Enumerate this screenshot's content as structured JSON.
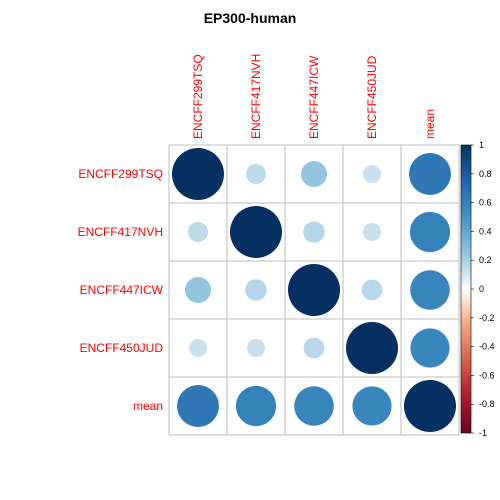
{
  "chart_data": {
    "type": "heatmap",
    "style": "corrplot-circle",
    "title": "EP300-human",
    "rows": [
      "ENCFF299TSQ",
      "ENCFF417NVH",
      "ENCFF447ICW",
      "ENCFF450JUD",
      "mean"
    ],
    "columns": [
      "ENCFF299TSQ",
      "ENCFF417NVH",
      "ENCFF447ICW",
      "ENCFF450JUD",
      "mean"
    ],
    "matrix": [
      [
        1.0,
        0.15,
        0.25,
        0.12,
        0.65
      ],
      [
        0.15,
        1.0,
        0.17,
        0.12,
        0.6
      ],
      [
        0.25,
        0.17,
        1.0,
        0.16,
        0.58
      ],
      [
        0.12,
        0.12,
        0.16,
        1.0,
        0.57
      ],
      [
        0.65,
        0.6,
        0.58,
        0.57,
        1.0
      ]
    ],
    "color_scale": {
      "range": [
        -1,
        1
      ],
      "ticks": [
        "1",
        "0.8",
        "0.6",
        "0.4",
        "0.2",
        "0",
        "-0.2",
        "-0.4",
        "-0.6",
        "-0.8",
        "-1"
      ],
      "stops": [
        {
          "v": -1.0,
          "c": "#67001F"
        },
        {
          "v": -0.75,
          "c": "#B2182B"
        },
        {
          "v": -0.5,
          "c": "#D6604D"
        },
        {
          "v": -0.25,
          "c": "#F4A582"
        },
        {
          "v": -0.1,
          "c": "#FDDBC7"
        },
        {
          "v": 0.0,
          "c": "#FFFFFF"
        },
        {
          "v": 0.1,
          "c": "#D1E5F0"
        },
        {
          "v": 0.25,
          "c": "#92C5DE"
        },
        {
          "v": 0.5,
          "c": "#4393C3"
        },
        {
          "v": 0.75,
          "c": "#2166AC"
        },
        {
          "v": 1.0,
          "c": "#053061"
        }
      ]
    },
    "label_color": "#FF0000",
    "grid_color": "#BEBEBE"
  }
}
